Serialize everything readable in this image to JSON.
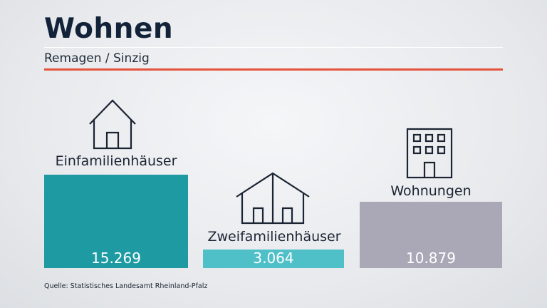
{
  "header": {
    "title": "Wohnen",
    "subtitle": "Remagen / Sinzig"
  },
  "source": "Quelle: Statistisches Landesamt Rheinland-Pfalz",
  "icons": [
    "house-icon",
    "double-house-icon",
    "apartment-building-icon"
  ],
  "chart_data": {
    "type": "bar",
    "categories": [
      "Einfamilienhäuser",
      "Zweifamilienhäuser",
      "Wohnungen"
    ],
    "values": [
      15269,
      3064,
      10879
    ],
    "value_labels": [
      "15.269",
      "3.064",
      "10.879"
    ],
    "colors": [
      "#1d9aa2",
      "#4fc0c8",
      "#aaa7b6"
    ],
    "title": "Wohnen",
    "subtitle": "Remagen / Sinzig",
    "grid": false,
    "legend": "none"
  }
}
